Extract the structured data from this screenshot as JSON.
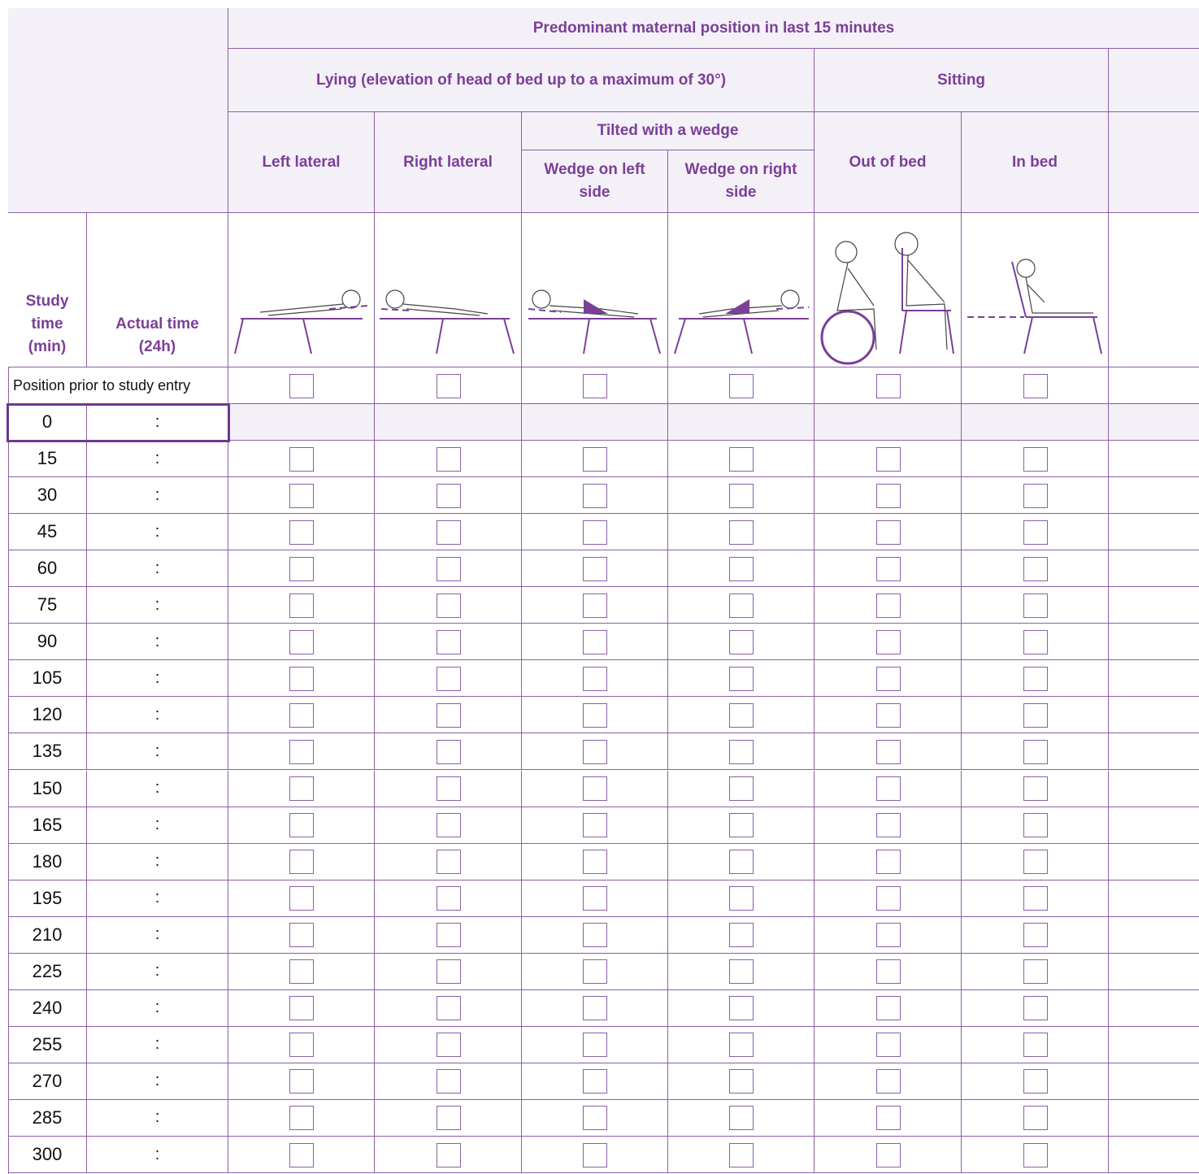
{
  "header": {
    "title": "Predominant maternal position in last 15 minutes",
    "lying": "Lying (elevation of head of bed up to a maximum of 30°)",
    "sitting": "Sitting",
    "tilted": "Tilted with a wedge",
    "columns": [
      "Left lateral",
      "Right lateral",
      "Wedge on left side",
      "Wedge on right side",
      "Out of bed",
      "In bed"
    ],
    "study_time": "Study time (min)",
    "actual_time": "Actual time (24h)"
  },
  "prior_row": "Position prior to study entry",
  "rows": [
    {
      "study_time": 0,
      "actual_time": ":"
    },
    {
      "study_time": 15,
      "actual_time": ":"
    },
    {
      "study_time": 30,
      "actual_time": ":"
    },
    {
      "study_time": 45,
      "actual_time": ":"
    },
    {
      "study_time": 60,
      "actual_time": ":"
    },
    {
      "study_time": 75,
      "actual_time": ":"
    },
    {
      "study_time": 90,
      "actual_time": ":"
    },
    {
      "study_time": 105,
      "actual_time": ":"
    },
    {
      "study_time": 120,
      "actual_time": ":"
    },
    {
      "study_time": 135,
      "actual_time": ":"
    },
    {
      "study_time": 150,
      "actual_time": ":"
    },
    {
      "study_time": 165,
      "actual_time": ":"
    },
    {
      "study_time": 180,
      "actual_time": ":"
    },
    {
      "study_time": 195,
      "actual_time": ":"
    },
    {
      "study_time": 210,
      "actual_time": ":"
    },
    {
      "study_time": 225,
      "actual_time": ":"
    },
    {
      "study_time": 240,
      "actual_time": ":"
    },
    {
      "study_time": 255,
      "actual_time": ":"
    },
    {
      "study_time": 270,
      "actual_time": ":"
    },
    {
      "study_time": 285,
      "actual_time": ":"
    },
    {
      "study_time": 300,
      "actual_time": ":"
    }
  ]
}
